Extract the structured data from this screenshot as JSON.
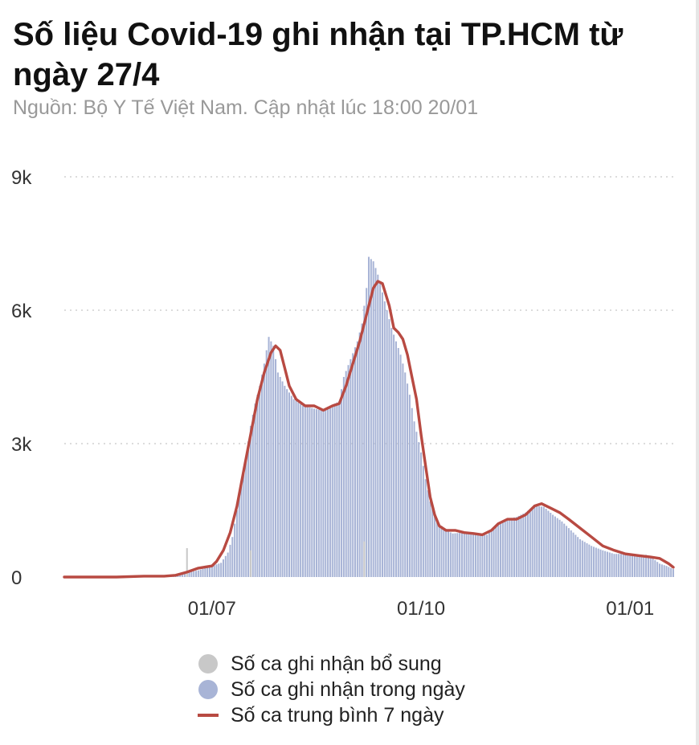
{
  "header": {
    "title": "Số liệu Covid-19 ghi nhận tại TP.HCM từ ngày 27/4",
    "source": "Nguồn: Bộ Y Tế Việt Nam. Cập nhật lúc 18:00 20/01"
  },
  "legend": {
    "items": [
      {
        "label": "Số ca ghi nhận bổ sung",
        "color": "#c8c8c8",
        "kind": "dot"
      },
      {
        "label": "Số ca ghi nhận trong ngày",
        "color": "#a8b4d6",
        "kind": "dot"
      },
      {
        "label": "Số ca trung bình 7 ngày",
        "color": "#b84a42",
        "kind": "line"
      }
    ]
  },
  "chart_data": {
    "type": "bar",
    "x_range": [
      "2021-04-27",
      "2022-01-20"
    ],
    "x_ticks": [
      {
        "date": "2021-07-01",
        "label": "01/07"
      },
      {
        "date": "2021-10-01",
        "label": "01/10"
      },
      {
        "date": "2022-01-01",
        "label": "01/01"
      }
    ],
    "y_ticks": [
      {
        "value": 0,
        "label": "0"
      },
      {
        "value": 3000,
        "label": "3k"
      },
      {
        "value": 6000,
        "label": "6k"
      },
      {
        "value": 9000,
        "label": "9k"
      }
    ],
    "ylim": [
      0,
      9000
    ],
    "grid": true,
    "legend_position": "bottom",
    "colors": {
      "daily": "#a8b4d6",
      "supplementary": "#c8c8c8",
      "average": "#b84a42",
      "grid": "#d0d0d0"
    },
    "series": [
      {
        "name": "Số ca ghi nhận trong ngày",
        "kind": "bar",
        "points": [
          [
            "2021-04-27",
            0
          ],
          [
            "2021-05-15",
            5
          ],
          [
            "2021-05-30",
            20
          ],
          [
            "2021-06-10",
            40
          ],
          [
            "2021-06-18",
            80
          ],
          [
            "2021-06-25",
            150
          ],
          [
            "2021-07-01",
            250
          ],
          [
            "2021-07-05",
            320
          ],
          [
            "2021-07-08",
            550
          ],
          [
            "2021-07-10",
            900
          ],
          [
            "2021-07-12",
            1500
          ],
          [
            "2021-07-14",
            2200
          ],
          [
            "2021-07-16",
            2700
          ],
          [
            "2021-07-18",
            3400
          ],
          [
            "2021-07-20",
            3900
          ],
          [
            "2021-07-22",
            4300
          ],
          [
            "2021-07-24",
            4800
          ],
          [
            "2021-07-26",
            5400
          ],
          [
            "2021-07-28",
            5200
          ],
          [
            "2021-07-30",
            4600
          ],
          [
            "2021-08-02",
            4300
          ],
          [
            "2021-08-06",
            4000
          ],
          [
            "2021-08-10",
            3850
          ],
          [
            "2021-08-14",
            3800
          ],
          [
            "2021-08-18",
            3750
          ],
          [
            "2021-08-22",
            3850
          ],
          [
            "2021-08-26",
            3950
          ],
          [
            "2021-08-28",
            4500
          ],
          [
            "2021-08-31",
            4900
          ],
          [
            "2021-09-03",
            5300
          ],
          [
            "2021-09-05",
            5700
          ],
          [
            "2021-09-07",
            6500
          ],
          [
            "2021-09-08",
            7200
          ],
          [
            "2021-09-10",
            7100
          ],
          [
            "2021-09-12",
            6800
          ],
          [
            "2021-09-14",
            6400
          ],
          [
            "2021-09-16",
            6000
          ],
          [
            "2021-09-18",
            5600
          ],
          [
            "2021-09-20",
            5300
          ],
          [
            "2021-09-22",
            5000
          ],
          [
            "2021-09-24",
            4600
          ],
          [
            "2021-09-26",
            4100
          ],
          [
            "2021-09-28",
            3500
          ],
          [
            "2021-10-01",
            2800
          ],
          [
            "2021-10-03",
            2200
          ],
          [
            "2021-10-05",
            1700
          ],
          [
            "2021-10-07",
            1400
          ],
          [
            "2021-10-09",
            1200
          ],
          [
            "2021-10-12",
            1050
          ],
          [
            "2021-10-15",
            980
          ],
          [
            "2021-10-20",
            1000
          ],
          [
            "2021-10-25",
            950
          ],
          [
            "2021-10-30",
            950
          ],
          [
            "2021-11-03",
            1150
          ],
          [
            "2021-11-07",
            1300
          ],
          [
            "2021-11-12",
            1350
          ],
          [
            "2021-11-16",
            1450
          ],
          [
            "2021-11-20",
            1600
          ],
          [
            "2021-11-24",
            1580
          ],
          [
            "2021-11-28",
            1400
          ],
          [
            "2021-12-02",
            1250
          ],
          [
            "2021-12-06",
            1050
          ],
          [
            "2021-12-10",
            850
          ],
          [
            "2021-12-15",
            700
          ],
          [
            "2021-12-20",
            600
          ],
          [
            "2021-12-25",
            520
          ],
          [
            "2021-12-30",
            520
          ],
          [
            "2022-01-04",
            480
          ],
          [
            "2022-01-08",
            500
          ],
          [
            "2022-01-11",
            420
          ],
          [
            "2022-01-14",
            300
          ],
          [
            "2022-01-17",
            250
          ],
          [
            "2022-01-20",
            180
          ]
        ]
      },
      {
        "name": "Số ca ghi nhận bổ sung",
        "kind": "bar",
        "points": [
          [
            "2021-06-20",
            650
          ],
          [
            "2021-07-18",
            600
          ],
          [
            "2021-09-06",
            800
          ]
        ]
      },
      {
        "name": "Số ca trung bình 7 ngày",
        "kind": "line",
        "points": [
          [
            "2021-04-27",
            0
          ],
          [
            "2021-05-20",
            0
          ],
          [
            "2021-06-01",
            20
          ],
          [
            "2021-06-10",
            20
          ],
          [
            "2021-06-15",
            40
          ],
          [
            "2021-06-20",
            110
          ],
          [
            "2021-06-25",
            200
          ],
          [
            "2021-07-01",
            250
          ],
          [
            "2021-07-03",
            350
          ],
          [
            "2021-07-06",
            600
          ],
          [
            "2021-07-09",
            1000
          ],
          [
            "2021-07-12",
            1600
          ],
          [
            "2021-07-15",
            2400
          ],
          [
            "2021-07-18",
            3200
          ],
          [
            "2021-07-21",
            4000
          ],
          [
            "2021-07-24",
            4600
          ],
          [
            "2021-07-27",
            5050
          ],
          [
            "2021-07-29",
            5200
          ],
          [
            "2021-07-31",
            5100
          ],
          [
            "2021-08-02",
            4700
          ],
          [
            "2021-08-04",
            4300
          ],
          [
            "2021-08-07",
            4000
          ],
          [
            "2021-08-11",
            3850
          ],
          [
            "2021-08-15",
            3850
          ],
          [
            "2021-08-19",
            3750
          ],
          [
            "2021-08-23",
            3850
          ],
          [
            "2021-08-26",
            3900
          ],
          [
            "2021-08-29",
            4300
          ],
          [
            "2021-09-01",
            4800
          ],
          [
            "2021-09-04",
            5300
          ],
          [
            "2021-09-07",
            5900
          ],
          [
            "2021-09-10",
            6500
          ],
          [
            "2021-09-12",
            6650
          ],
          [
            "2021-09-14",
            6600
          ],
          [
            "2021-09-17",
            6100
          ],
          [
            "2021-09-19",
            5600
          ],
          [
            "2021-09-21",
            5500
          ],
          [
            "2021-09-23",
            5350
          ],
          [
            "2021-09-25",
            5000
          ],
          [
            "2021-09-27",
            4500
          ],
          [
            "2021-09-29",
            4000
          ],
          [
            "2021-10-01",
            3200
          ],
          [
            "2021-10-03",
            2500
          ],
          [
            "2021-10-05",
            1800
          ],
          [
            "2021-10-07",
            1400
          ],
          [
            "2021-10-09",
            1150
          ],
          [
            "2021-10-12",
            1050
          ],
          [
            "2021-10-16",
            1050
          ],
          [
            "2021-10-20",
            1000
          ],
          [
            "2021-10-24",
            980
          ],
          [
            "2021-10-28",
            950
          ],
          [
            "2021-11-01",
            1050
          ],
          [
            "2021-11-04",
            1200
          ],
          [
            "2021-11-08",
            1300
          ],
          [
            "2021-11-12",
            1300
          ],
          [
            "2021-11-16",
            1400
          ],
          [
            "2021-11-20",
            1600
          ],
          [
            "2021-11-23",
            1650
          ],
          [
            "2021-11-27",
            1550
          ],
          [
            "2021-12-01",
            1450
          ],
          [
            "2021-12-05",
            1300
          ],
          [
            "2021-12-10",
            1100
          ],
          [
            "2021-12-15",
            900
          ],
          [
            "2021-12-20",
            700
          ],
          [
            "2021-12-25",
            600
          ],
          [
            "2021-12-30",
            520
          ],
          [
            "2022-01-05",
            480
          ],
          [
            "2022-01-10",
            450
          ],
          [
            "2022-01-14",
            420
          ],
          [
            "2022-01-18",
            300
          ],
          [
            "2022-01-20",
            220
          ]
        ]
      }
    ]
  }
}
